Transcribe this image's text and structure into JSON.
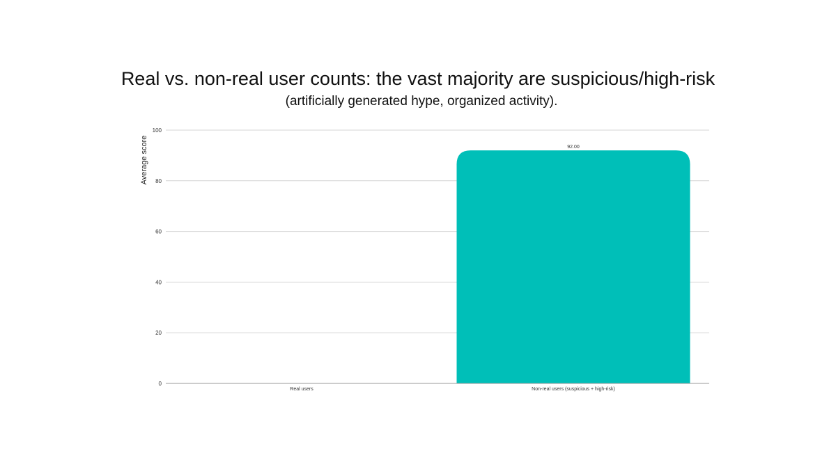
{
  "chart_data": {
    "type": "bar",
    "title": "Real vs. non-real user counts: the vast majority are suspicious/high-risk",
    "subtitle": "(artificially generated hype, organized activity).",
    "xlabel": "",
    "ylabel": "Average score",
    "categories": [
      "Real users",
      "Non-real users (suspicious + high-risk)"
    ],
    "values": [
      0,
      92
    ],
    "data_labels": [
      "",
      "92.00"
    ],
    "ylim": [
      0,
      100
    ],
    "yticks": [
      0,
      20,
      40,
      60,
      80,
      100
    ],
    "ytick_labels": [
      "0",
      "20",
      "40",
      "60",
      "80",
      "100"
    ],
    "grid": true,
    "bar_color": "#00BFB8",
    "grid_color": "#d4d4d4"
  }
}
